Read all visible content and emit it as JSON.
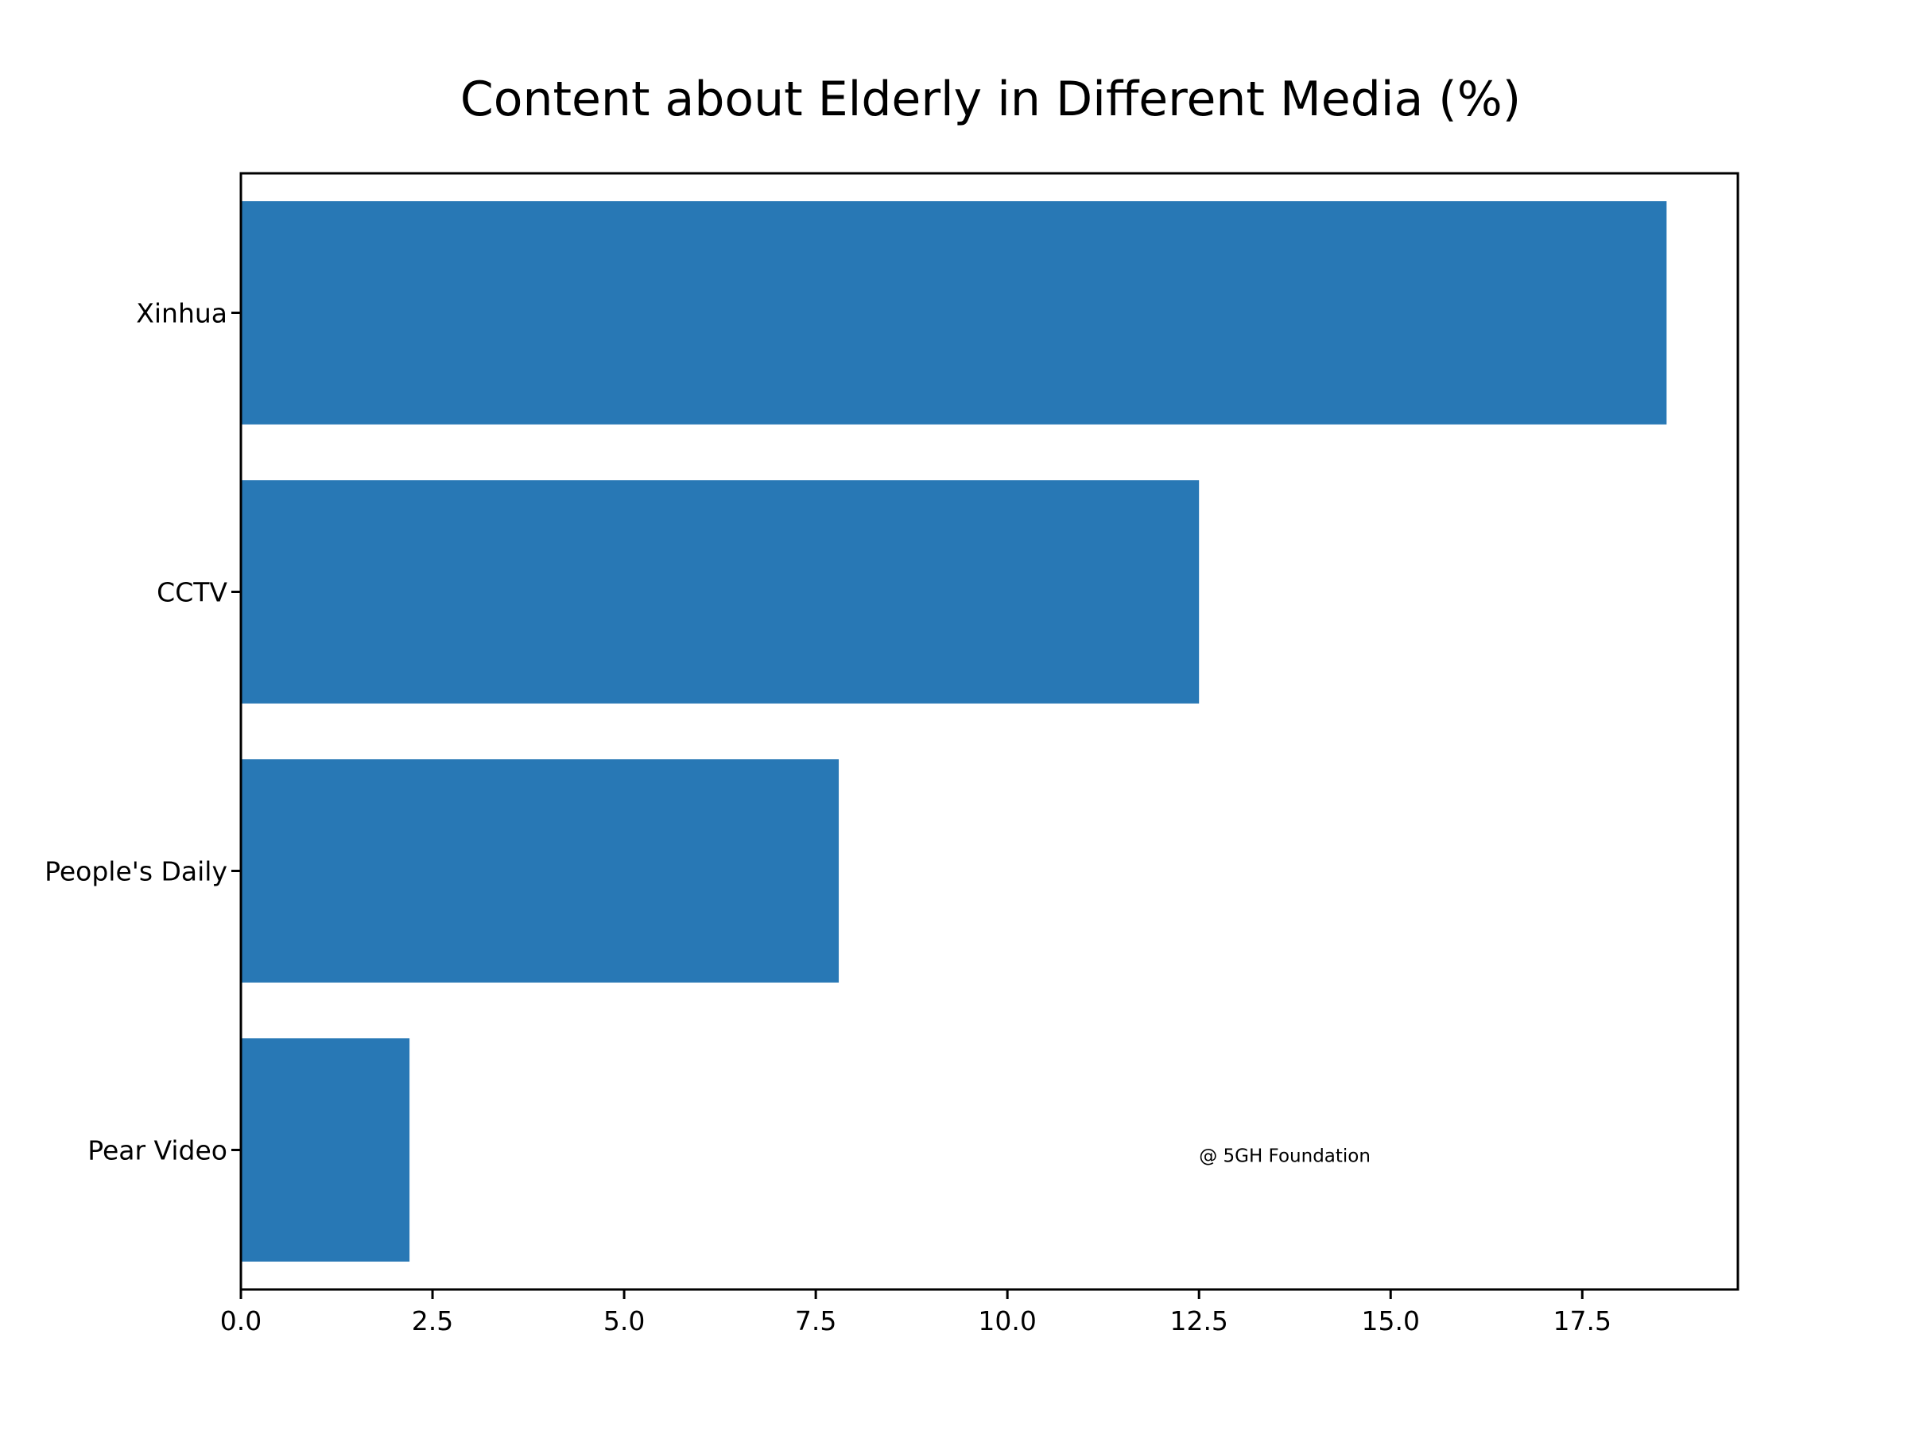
{
  "chart_data": {
    "type": "bar",
    "orientation": "horizontal",
    "title": "Content about Elderly in Different Media (%)",
    "xlabel": "",
    "ylabel": "",
    "categories": [
      "Xinhua",
      "CCTV",
      "People's Daily",
      "Pear Video"
    ],
    "values": [
      18.6,
      12.5,
      7.8,
      2.2
    ],
    "xlim": [
      0,
      19.53
    ],
    "x_ticks": [
      0.0,
      2.5,
      5.0,
      7.5,
      10.0,
      12.5,
      15.0,
      17.5
    ],
    "x_tick_labels": [
      "0.0",
      "2.5",
      "5.0",
      "7.5",
      "10.0",
      "12.5",
      "15.0",
      "17.5"
    ],
    "grid": false,
    "legend": "none",
    "bar_color": "#2878b5",
    "annotation": {
      "text": "@ 5GH Foundation",
      "x": 12.5,
      "category_position": 0.12
    }
  }
}
